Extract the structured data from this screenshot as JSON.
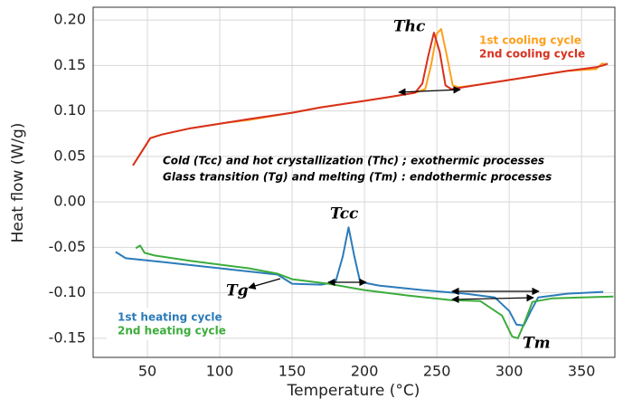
{
  "chart_data": {
    "type": "line",
    "xlabel": "Temperature (°C)",
    "ylabel": "Heat flow (W/g)",
    "xlim": [
      12.5,
      373
    ],
    "ylim": [
      -0.171,
      0.214
    ],
    "xticks": [
      50,
      100,
      150,
      200,
      250,
      300,
      350
    ],
    "yticks": [
      {
        "value": 0.2,
        "label": "0.20"
      },
      0.15,
      {
        "value": 0.1,
        "label": "0.10"
      },
      0.05,
      {
        "value": 0,
        "label": "0.00"
      },
      -0.05,
      {
        "value": -0.1,
        "label": "-0.10"
      },
      -0.15
    ],
    "grid": true,
    "annotations": [
      "Thc",
      "Tcc",
      "Tg",
      "Tm",
      "Cold (Tcc) and hot crystallization (Thc) ; exothermic processes",
      "Glass transition (Tg) and melting (Tm) : endothermic processes"
    ],
    "series": [
      {
        "name": "1st cooling cycle",
        "color": "#ff9f1c",
        "x": [
          40,
          48,
          52,
          60,
          80,
          100,
          120,
          150,
          170,
          200,
          220,
          235,
          242,
          246,
          250,
          253,
          257,
          261,
          265,
          280,
          300,
          320,
          340,
          360,
          364,
          368
        ],
        "values": [
          0.04,
          0.06,
          0.07,
          0.074,
          0.081,
          0.086,
          0.09,
          0.098,
          0.104,
          0.111,
          0.116,
          0.12,
          0.124,
          0.15,
          0.185,
          0.19,
          0.16,
          0.128,
          0.126,
          0.129,
          0.134,
          0.139,
          0.144,
          0.146,
          0.152,
          0.151
        ]
      },
      {
        "name": "2nd cooling cycle",
        "color": "#d7301f",
        "x": [
          40,
          48,
          52,
          60,
          80,
          100,
          120,
          150,
          170,
          200,
          220,
          235,
          240,
          244,
          248,
          252,
          256,
          260,
          280,
          300,
          320,
          340,
          360,
          365,
          368
        ],
        "values": [
          0.04,
          0.06,
          0.07,
          0.074,
          0.081,
          0.086,
          0.091,
          0.098,
          0.104,
          0.111,
          0.116,
          0.12,
          0.13,
          0.16,
          0.186,
          0.165,
          0.128,
          0.124,
          0.129,
          0.134,
          0.139,
          0.144,
          0.148,
          0.15,
          0.152
        ]
      },
      {
        "name": "1st heating cycle",
        "color": "#2b7bba",
        "x": [
          28,
          35,
          60,
          100,
          140,
          150,
          170,
          180,
          185,
          189,
          193,
          197,
          210,
          240,
          270,
          290,
          300,
          305,
          310,
          315,
          320,
          340,
          365
        ],
        "values": [
          -0.055,
          -0.062,
          -0.066,
          -0.073,
          -0.08,
          -0.09,
          -0.091,
          -0.088,
          -0.06,
          -0.028,
          -0.06,
          -0.088,
          -0.092,
          -0.097,
          -0.101,
          -0.105,
          -0.12,
          -0.135,
          -0.136,
          -0.12,
          -0.105,
          -0.101,
          -0.099
        ]
      },
      {
        "name": "2nd heating cycle",
        "color": "#3cac3c",
        "x": [
          42,
          45,
          48,
          55,
          80,
          120,
          140,
          150,
          175,
          200,
          230,
          260,
          280,
          295,
          302,
          306,
          310,
          316,
          330,
          372
        ],
        "values": [
          -0.051,
          -0.048,
          -0.056,
          -0.059,
          -0.065,
          -0.073,
          -0.079,
          -0.085,
          -0.09,
          -0.097,
          -0.103,
          -0.108,
          -0.109,
          -0.125,
          -0.148,
          -0.15,
          -0.135,
          -0.11,
          -0.106,
          -0.104
        ]
      }
    ]
  }
}
